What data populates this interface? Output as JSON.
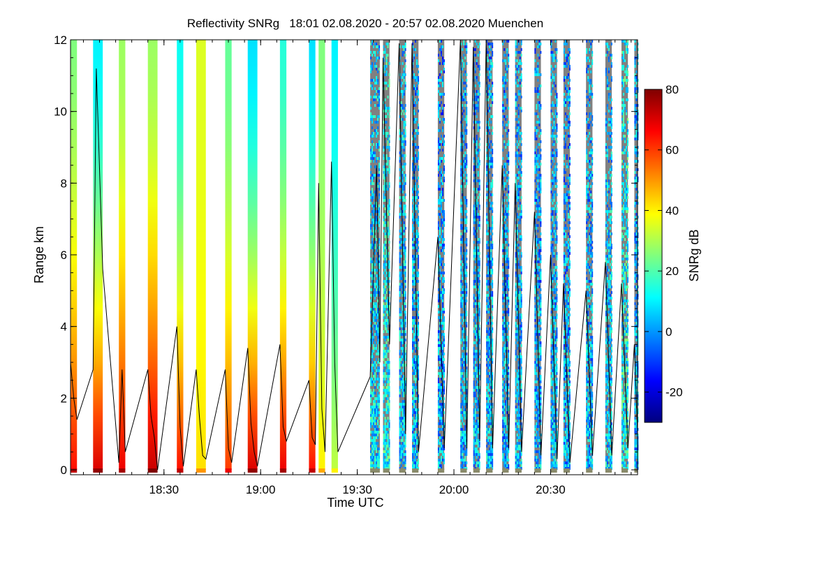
{
  "chart_data": {
    "type": "heatmap",
    "title": "Reflectivity SNRg   18:01 02.08.2020 - 20:57 02.08.2020 Muenchen",
    "xlabel": "Time UTC",
    "ylabel": "Range km",
    "xlim": [
      "18:01",
      "20:57"
    ],
    "ylim": [
      0,
      12
    ],
    "x_ticks": [
      "18:30",
      "19:00",
      "19:30",
      "20:00",
      "20:30"
    ],
    "y_ticks": [
      "0",
      "2",
      "4",
      "6",
      "8",
      "10",
      "12"
    ],
    "colorbar": {
      "label": "SNRg dB",
      "range": [
        -30,
        80
      ],
      "ticks": [
        "80",
        "60",
        "40",
        "20",
        "0",
        "-20"
      ],
      "colormap": "jet",
      "colors": [
        "#00007f",
        "#0000ff",
        "#007fff",
        "#00ffff",
        "#7fff7f",
        "#ffff00",
        "#ff7f00",
        "#ff0000",
        "#7f0000"
      ]
    },
    "nodata_color": "#808080",
    "scan_columns": [
      {
        "start": "18:01",
        "end": "18:03",
        "snr_top": 25,
        "snr_bottom": 65,
        "noisy": false
      },
      {
        "start": "18:08",
        "end": "18:11",
        "snr_top": 10,
        "snr_bottom": 70,
        "noisy": false
      },
      {
        "start": "18:16",
        "end": "18:18",
        "snr_top": 28,
        "snr_bottom": 68,
        "noisy": false
      },
      {
        "start": "18:25",
        "end": "18:28",
        "snr_top": 28,
        "snr_bottom": 72,
        "noisy": false
      },
      {
        "start": "18:34",
        "end": "18:36",
        "snr_top": 12,
        "snr_bottom": 65,
        "noisy": false
      },
      {
        "start": "18:40",
        "end": "18:43",
        "snr_top": 35,
        "snr_bottom": 42,
        "noisy": false
      },
      {
        "start": "18:49",
        "end": "18:51",
        "snr_top": 22,
        "snr_bottom": 60,
        "noisy": false
      },
      {
        "start": "18:56",
        "end": "18:59",
        "snr_top": 8,
        "snr_bottom": 70,
        "noisy": false
      },
      {
        "start": "19:06",
        "end": "19:08",
        "snr_top": 15,
        "snr_bottom": 68,
        "noisy": false
      },
      {
        "start": "19:15",
        "end": "19:17",
        "snr_top": 8,
        "snr_bottom": 65,
        "noisy": false
      },
      {
        "start": "19:18",
        "end": "19:20",
        "snr_top": 25,
        "snr_bottom": 40,
        "noisy": false
      },
      {
        "start": "19:22",
        "end": "19:24",
        "snr_top": 10,
        "snr_bottom": 32,
        "noisy": false
      },
      {
        "start": "19:34",
        "end": "19:37",
        "snr_top": 8,
        "snr_bottom": 12,
        "noisy": true
      },
      {
        "start": "19:38",
        "end": "19:40",
        "snr_top": 15,
        "snr_bottom": 15,
        "noisy": true
      },
      {
        "start": "19:43",
        "end": "19:45",
        "snr_top": 8,
        "snr_bottom": 10,
        "noisy": true
      },
      {
        "start": "19:47",
        "end": "19:49",
        "snr_top": 5,
        "snr_bottom": 8,
        "noisy": true
      },
      {
        "start": "19:55",
        "end": "19:57",
        "snr_top": 2,
        "snr_bottom": 6,
        "noisy": true
      },
      {
        "start": "20:02",
        "end": "20:04",
        "snr_top": 5,
        "snr_bottom": 8,
        "noisy": true
      },
      {
        "start": "20:06",
        "end": "20:08",
        "snr_top": 3,
        "snr_bottom": 8,
        "noisy": true
      },
      {
        "start": "20:10",
        "end": "20:12",
        "snr_top": 5,
        "snr_bottom": 8,
        "noisy": true
      },
      {
        "start": "20:15",
        "end": "20:17",
        "snr_top": 3,
        "snr_bottom": 6,
        "noisy": true
      },
      {
        "start": "20:19",
        "end": "20:21",
        "snr_top": 5,
        "snr_bottom": 8,
        "noisy": true
      },
      {
        "start": "20:25",
        "end": "20:27",
        "snr_top": 3,
        "snr_bottom": 6,
        "noisy": true
      },
      {
        "start": "20:30",
        "end": "20:32",
        "snr_top": 5,
        "snr_bottom": 8,
        "noisy": true
      },
      {
        "start": "20:34",
        "end": "20:36",
        "snr_top": 3,
        "snr_bottom": 6,
        "noisy": true
      },
      {
        "start": "20:41",
        "end": "20:43",
        "snr_top": 5,
        "snr_bottom": 8,
        "noisy": true
      },
      {
        "start": "20:47",
        "end": "20:49",
        "snr_top": 8,
        "snr_bottom": 10,
        "noisy": true
      },
      {
        "start": "20:52",
        "end": "20:54",
        "snr_top": 15,
        "snr_bottom": 15,
        "noisy": true
      },
      {
        "start": "20:56",
        "end": "20:57",
        "snr_top": 5,
        "snr_bottom": 8,
        "noisy": true
      }
    ],
    "cloud_base_line": {
      "times": [
        "18:01",
        "18:02",
        "18:03",
        "18:08",
        "18:09",
        "18:10",
        "18:11",
        "18:16",
        "18:17",
        "18:18",
        "18:25",
        "18:26",
        "18:27",
        "18:28",
        "18:34",
        "18:35",
        "18:36",
        "18:40",
        "18:41",
        "18:42",
        "18:43",
        "18:49",
        "18:50",
        "18:51",
        "18:56",
        "18:57",
        "18:58",
        "18:59",
        "19:06",
        "19:07",
        "19:08",
        "19:15",
        "19:16",
        "19:17",
        "19:18",
        "19:19",
        "19:20",
        "19:22",
        "19:23",
        "19:24",
        "19:34",
        "19:36",
        "19:37",
        "19:38",
        "19:40",
        "19:43",
        "19:45",
        "19:47",
        "19:49",
        "19:55",
        "19:57",
        "20:02",
        "20:04",
        "20:06",
        "20:08",
        "20:10",
        "20:12",
        "20:15",
        "20:17",
        "20:19",
        "20:21",
        "20:25",
        "20:27",
        "20:30",
        "20:32",
        "20:34",
        "20:36",
        "20:41",
        "20:43",
        "20:47",
        "20:49",
        "20:52",
        "20:54",
        "20:56",
        "20:57"
      ],
      "range_km": [
        3.0,
        2.0,
        1.4,
        2.8,
        11.2,
        8.4,
        5.6,
        0.2,
        2.8,
        0.5,
        2.8,
        1.5,
        0.9,
        0.0,
        4.0,
        1.2,
        0.1,
        2.8,
        1.5,
        0.4,
        0.3,
        2.8,
        0.6,
        0.2,
        3.4,
        1.3,
        0.5,
        0.1,
        3.5,
        1.2,
        0.8,
        2.5,
        0.9,
        0.7,
        8.0,
        1.7,
        0.5,
        8.6,
        3.0,
        0.5,
        2.6,
        8.5,
        3.0,
        11.5,
        3.5,
        11.9,
        1.0,
        11.9,
        0.5,
        6.5,
        0.6,
        12.0,
        0.6,
        11.8,
        0.8,
        12.0,
        0.6,
        8.5,
        0.6,
        8.0,
        0.5,
        7.2,
        0.4,
        6.0,
        0.3,
        5.2,
        0.2,
        5.0,
        0.4,
        5.8,
        0.4,
        5.2,
        0.6,
        3.5,
        1.0
      ]
    }
  }
}
